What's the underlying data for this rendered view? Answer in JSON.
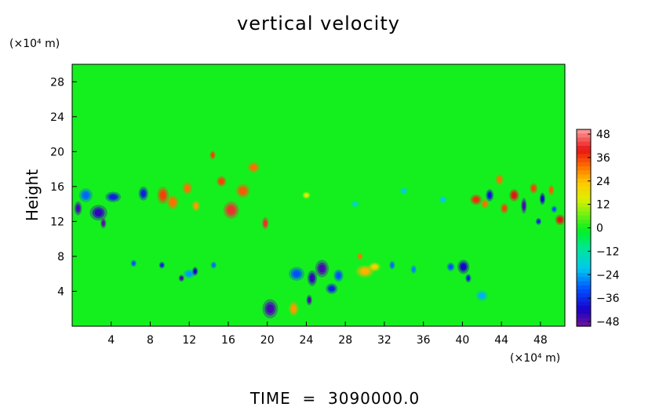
{
  "chart_data": {
    "type": "heatmap",
    "title": "vertical velocity",
    "ylabel": "Height",
    "x_unit_label": "(×10⁴ m)",
    "y_unit_label": "(×10⁴ m)",
    "footer": "TIME  =  3090000.0",
    "xlim": [
      0,
      50.5
    ],
    "ylim": [
      0,
      30
    ],
    "x_ticks": [
      4,
      8,
      12,
      16,
      20,
      24,
      28,
      32,
      36,
      40,
      44,
      48
    ],
    "y_ticks": [
      4,
      8,
      12,
      16,
      20,
      24,
      28
    ],
    "colorbar": {
      "ticks": [
        48,
        36,
        24,
        12,
        0,
        -12,
        -24,
        -36,
        -48
      ],
      "tick_labels": [
        "48",
        "36",
        "24",
        "12",
        "0",
        "−12",
        "−24",
        "−36",
        "−48"
      ],
      "range": [
        -48,
        48
      ]
    },
    "background_value": 0,
    "features": [
      {
        "x": 0.6,
        "y": 13.5,
        "sx": 0.4,
        "sy": 0.8,
        "v": -44
      },
      {
        "x": 1.4,
        "y": 15.0,
        "sx": 0.7,
        "sy": 0.8,
        "v": -28
      },
      {
        "x": 2.7,
        "y": 13.0,
        "sx": 0.9,
        "sy": 0.9,
        "v": -42
      },
      {
        "x": 3.2,
        "y": 11.8,
        "sx": 0.3,
        "sy": 0.6,
        "v": -46
      },
      {
        "x": 4.2,
        "y": 14.8,
        "sx": 0.8,
        "sy": 0.6,
        "v": -36
      },
      {
        "x": 7.3,
        "y": 15.2,
        "sx": 0.5,
        "sy": 0.8,
        "v": -36
      },
      {
        "x": 9.3,
        "y": 15.0,
        "sx": 0.6,
        "sy": 1.0,
        "v": 34
      },
      {
        "x": 10.3,
        "y": 14.2,
        "sx": 0.6,
        "sy": 0.8,
        "v": 30
      },
      {
        "x": 11.8,
        "y": 15.8,
        "sx": 0.5,
        "sy": 0.7,
        "v": 30
      },
      {
        "x": 12.7,
        "y": 13.8,
        "sx": 0.4,
        "sy": 0.6,
        "v": 26
      },
      {
        "x": 14.4,
        "y": 19.6,
        "sx": 0.3,
        "sy": 0.5,
        "v": 34
      },
      {
        "x": 15.3,
        "y": 16.6,
        "sx": 0.5,
        "sy": 0.6,
        "v": 34
      },
      {
        "x": 16.3,
        "y": 13.3,
        "sx": 0.8,
        "sy": 1.0,
        "v": 40
      },
      {
        "x": 17.5,
        "y": 15.5,
        "sx": 0.7,
        "sy": 0.8,
        "v": 32
      },
      {
        "x": 18.6,
        "y": 18.2,
        "sx": 0.6,
        "sy": 0.6,
        "v": 30
      },
      {
        "x": 19.8,
        "y": 11.8,
        "sx": 0.35,
        "sy": 0.7,
        "v": 40
      },
      {
        "x": 12.0,
        "y": 6.0,
        "sx": 0.6,
        "sy": 0.5,
        "v": -24
      },
      {
        "x": 11.2,
        "y": 5.5,
        "sx": 0.3,
        "sy": 0.4,
        "v": -44
      },
      {
        "x": 12.6,
        "y": 6.3,
        "sx": 0.3,
        "sy": 0.5,
        "v": -40
      },
      {
        "x": 9.2,
        "y": 7.0,
        "sx": 0.3,
        "sy": 0.4,
        "v": -36
      },
      {
        "x": 6.3,
        "y": 7.2,
        "sx": 0.3,
        "sy": 0.4,
        "v": -30
      },
      {
        "x": 14.5,
        "y": 7.0,
        "sx": 0.3,
        "sy": 0.4,
        "v": -28
      },
      {
        "x": 20.3,
        "y": 2.0,
        "sx": 0.8,
        "sy": 1.1,
        "v": -44
      },
      {
        "x": 22.7,
        "y": 2.0,
        "sx": 0.5,
        "sy": 0.8,
        "v": 26
      },
      {
        "x": 23.0,
        "y": 6.0,
        "sx": 0.8,
        "sy": 0.8,
        "v": -30
      },
      {
        "x": 24.6,
        "y": 5.5,
        "sx": 0.5,
        "sy": 0.9,
        "v": -42
      },
      {
        "x": 25.6,
        "y": 6.6,
        "sx": 0.7,
        "sy": 1.0,
        "v": -44
      },
      {
        "x": 24.3,
        "y": 3.0,
        "sx": 0.3,
        "sy": 0.6,
        "v": -44
      },
      {
        "x": 26.6,
        "y": 4.3,
        "sx": 0.6,
        "sy": 0.6,
        "v": -36
      },
      {
        "x": 27.3,
        "y": 5.8,
        "sx": 0.5,
        "sy": 0.7,
        "v": -30
      },
      {
        "x": 30.0,
        "y": 6.3,
        "sx": 0.9,
        "sy": 0.7,
        "v": 24
      },
      {
        "x": 29.5,
        "y": 8.0,
        "sx": 0.3,
        "sy": 0.4,
        "v": 30
      },
      {
        "x": 31.0,
        "y": 6.8,
        "sx": 0.6,
        "sy": 0.5,
        "v": 20
      },
      {
        "x": 32.8,
        "y": 7.0,
        "sx": 0.3,
        "sy": 0.5,
        "v": -28
      },
      {
        "x": 35.0,
        "y": 6.5,
        "sx": 0.3,
        "sy": 0.5,
        "v": -26
      },
      {
        "x": 38.8,
        "y": 6.8,
        "sx": 0.4,
        "sy": 0.5,
        "v": -30
      },
      {
        "x": 40.1,
        "y": 6.8,
        "sx": 0.6,
        "sy": 0.8,
        "v": -40
      },
      {
        "x": 40.6,
        "y": 5.5,
        "sx": 0.3,
        "sy": 0.5,
        "v": -36
      },
      {
        "x": 42.0,
        "y": 3.5,
        "sx": 0.6,
        "sy": 0.6,
        "v": -22
      },
      {
        "x": 41.4,
        "y": 14.5,
        "sx": 0.6,
        "sy": 0.6,
        "v": 36
      },
      {
        "x": 42.3,
        "y": 14.0,
        "sx": 0.4,
        "sy": 0.5,
        "v": 30
      },
      {
        "x": 42.8,
        "y": 15.0,
        "sx": 0.4,
        "sy": 0.7,
        "v": -38
      },
      {
        "x": 43.8,
        "y": 16.8,
        "sx": 0.4,
        "sy": 0.6,
        "v": 30
      },
      {
        "x": 44.3,
        "y": 13.5,
        "sx": 0.4,
        "sy": 0.6,
        "v": 34
      },
      {
        "x": 45.3,
        "y": 15.0,
        "sx": 0.5,
        "sy": 0.7,
        "v": 38
      },
      {
        "x": 46.3,
        "y": 13.8,
        "sx": 0.3,
        "sy": 0.9,
        "v": -44
      },
      {
        "x": 47.3,
        "y": 15.8,
        "sx": 0.4,
        "sy": 0.6,
        "v": 34
      },
      {
        "x": 48.2,
        "y": 14.6,
        "sx": 0.3,
        "sy": 0.7,
        "v": -40
      },
      {
        "x": 49.1,
        "y": 15.6,
        "sx": 0.3,
        "sy": 0.6,
        "v": 32
      },
      {
        "x": 47.8,
        "y": 12.0,
        "sx": 0.3,
        "sy": 0.4,
        "v": -36
      },
      {
        "x": 50.0,
        "y": 12.2,
        "sx": 0.5,
        "sy": 0.6,
        "v": 38
      },
      {
        "x": 49.4,
        "y": 13.4,
        "sx": 0.3,
        "sy": 0.4,
        "v": -30
      },
      {
        "x": 38.0,
        "y": 14.5,
        "sx": 0.4,
        "sy": 0.4,
        "v": -20
      },
      {
        "x": 34.0,
        "y": 15.5,
        "sx": 0.4,
        "sy": 0.4,
        "v": -18
      },
      {
        "x": 29.0,
        "y": 14.0,
        "sx": 0.4,
        "sy": 0.4,
        "v": -16
      },
      {
        "x": 24.0,
        "y": 15.0,
        "sx": 0.4,
        "sy": 0.4,
        "v": 14
      }
    ]
  }
}
